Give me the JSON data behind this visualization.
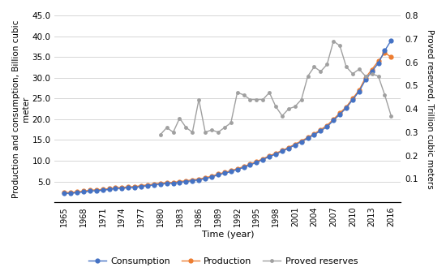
{
  "years": [
    1965,
    1966,
    1967,
    1968,
    1969,
    1970,
    1971,
    1972,
    1973,
    1974,
    1975,
    1976,
    1977,
    1978,
    1979,
    1980,
    1981,
    1982,
    1983,
    1984,
    1985,
    1986,
    1987,
    1988,
    1989,
    1990,
    1991,
    1992,
    1993,
    1994,
    1995,
    1996,
    1997,
    1998,
    1999,
    2000,
    2001,
    2002,
    2003,
    2004,
    2005,
    2006,
    2007,
    2008,
    2009,
    2010,
    2011,
    2012,
    2013,
    2014,
    2015,
    2016
  ],
  "production": [
    2.3,
    2.4,
    2.5,
    2.7,
    2.9,
    3.0,
    3.1,
    3.3,
    3.5,
    3.6,
    3.7,
    3.8,
    4.0,
    4.2,
    4.4,
    4.6,
    4.7,
    4.8,
    5.0,
    5.2,
    5.4,
    5.6,
    5.9,
    6.3,
    6.8,
    7.2,
    7.6,
    8.1,
    8.6,
    9.2,
    9.8,
    10.5,
    11.2,
    11.8,
    12.5,
    13.2,
    14.0,
    14.8,
    15.6,
    16.5,
    17.5,
    18.5,
    20.0,
    21.5,
    23.0,
    25.0,
    27.0,
    30.0,
    32.0,
    34.0,
    36.0,
    35.0
  ],
  "consumption": [
    2.1,
    2.2,
    2.3,
    2.5,
    2.7,
    2.8,
    2.9,
    3.1,
    3.3,
    3.4,
    3.5,
    3.6,
    3.8,
    4.0,
    4.2,
    4.4,
    4.5,
    4.6,
    4.8,
    5.0,
    5.2,
    5.4,
    5.7,
    6.1,
    6.6,
    7.0,
    7.4,
    7.9,
    8.4,
    9.0,
    9.6,
    10.3,
    11.0,
    11.6,
    12.3,
    13.0,
    13.8,
    14.6,
    15.4,
    16.3,
    17.2,
    18.2,
    19.7,
    21.2,
    22.7,
    24.7,
    26.7,
    29.5,
    31.5,
    33.5,
    36.5,
    39.0
  ],
  "proved_years": [
    1980,
    1981,
    1982,
    1983,
    1984,
    1985,
    1986,
    1987,
    1988,
    1989,
    1990,
    1991,
    1992,
    1993,
    1994,
    1995,
    1996,
    1997,
    1998,
    1999,
    2000,
    2001,
    2002,
    2003,
    2004,
    2005,
    2006,
    2007,
    2008,
    2009,
    2010,
    2011,
    2012,
    2013,
    2014,
    2015,
    2016
  ],
  "proved_reserves": [
    0.29,
    0.32,
    0.3,
    0.36,
    0.32,
    0.3,
    0.44,
    0.3,
    0.31,
    0.3,
    0.32,
    0.34,
    0.47,
    0.46,
    0.44,
    0.44,
    0.44,
    0.47,
    0.41,
    0.37,
    0.4,
    0.41,
    0.44,
    0.54,
    0.58,
    0.56,
    0.59,
    0.69,
    0.67,
    0.58,
    0.55,
    0.57,
    0.54,
    0.55,
    0.54,
    0.46,
    0.37
  ],
  "consumption_color": "#4472c4",
  "production_color": "#ed7d31",
  "reserves_color": "#a0a0a0",
  "ylabel_left": "Production and consumption, Billion cubic\nmeter",
  "ylabel_right": "Proved reserved, Trillion cubic meters",
  "xlabel": "Time (year)",
  "ylim_left": [
    0,
    45
  ],
  "ylim_right": [
    0,
    0.8
  ],
  "yticks_left": [
    0,
    5.0,
    10.0,
    15.0,
    20.0,
    25.0,
    30.0,
    35.0,
    40.0,
    45.0
  ],
  "ytick_labels_left": [
    "",
    "5.0",
    "10.0",
    "15.0",
    "20.0",
    "25.0",
    "30.0",
    "35.0",
    "40.0",
    "45.0"
  ],
  "yticks_right": [
    0,
    0.1,
    0.2,
    0.3,
    0.4,
    0.5,
    0.6,
    0.7,
    0.8
  ],
  "ytick_labels_right": [
    "",
    "0.1",
    "0.2",
    "0.3",
    "0.4",
    "0.5",
    "0.6",
    "0.7",
    "0.8"
  ],
  "xtick_labels": [
    "1965",
    "1968",
    "1971",
    "1974",
    "1977",
    "1980",
    "1983",
    "1986",
    "1989",
    "1992",
    "1995",
    "1998",
    "2001",
    "2004",
    "2007",
    "2010",
    "2013",
    "2016"
  ],
  "xtick_years": [
    1965,
    1968,
    1971,
    1974,
    1977,
    1980,
    1983,
    1986,
    1989,
    1992,
    1995,
    1998,
    2001,
    2004,
    2007,
    2010,
    2013,
    2016
  ],
  "legend_consumption": "Consumption",
  "legend_production": "Production",
  "legend_reserves": "Proved reserves",
  "bg_color": "#ffffff",
  "grid_color": "#d0d0d0",
  "dot_size_prod": 4.5,
  "dot_size_cons": 4.5,
  "dot_size_res": 3.5
}
